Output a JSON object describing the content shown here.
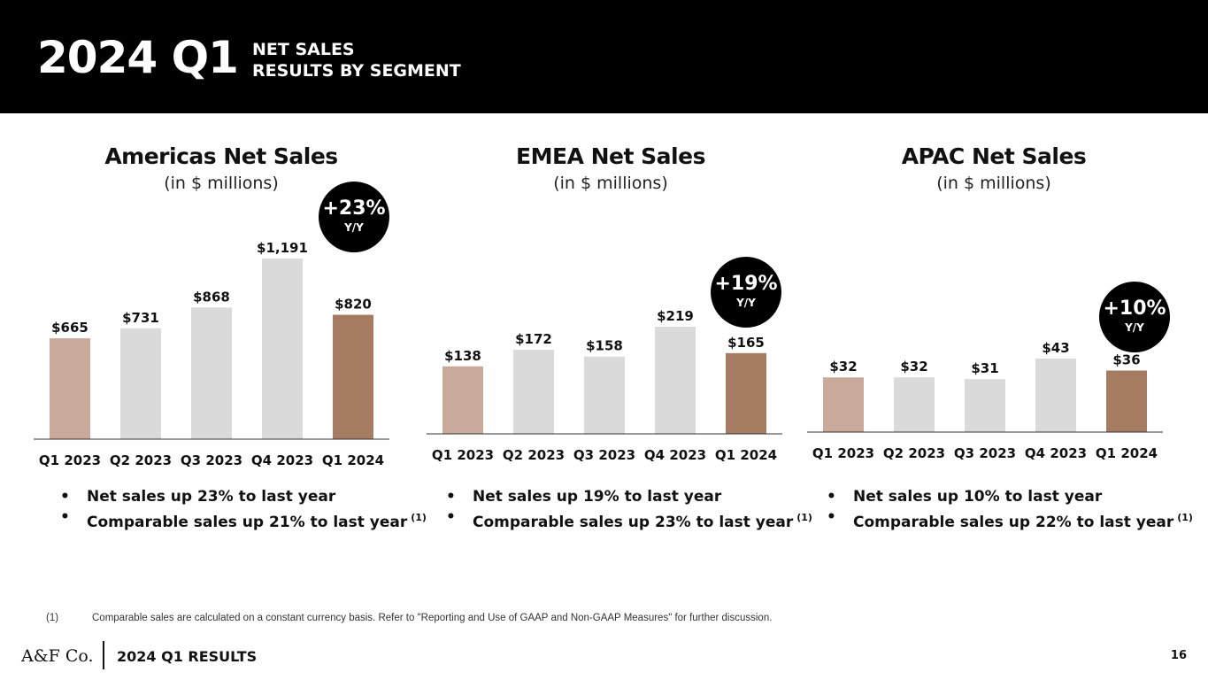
{
  "header": {
    "year_quarter": "2024 Q1",
    "title_line1": "NET SALES",
    "title_line2": "RESULTS BY SEGMENT"
  },
  "colors": {
    "bar_prior_q1": "#c8a99a",
    "bar_other": "#dadada",
    "bar_current": "#a57c62",
    "baseline": "#333333",
    "badge": "#000000"
  },
  "panels": [
    {
      "title": "Americas Net Sales",
      "subtitle": "(in $ millions)",
      "badge": {
        "pct": "+23%",
        "label": "Y/Y"
      },
      "chart_data": {
        "type": "bar",
        "title": "Americas Net Sales",
        "ylabel": "(in $ millions)",
        "categories": [
          "Q1 2023",
          "Q2 2023",
          "Q3 2023",
          "Q4 2023",
          "Q1 2024"
        ],
        "values": [
          665,
          731,
          868,
          1191,
          820
        ],
        "value_labels": [
          "$665",
          "$731",
          "$868",
          "$1,191",
          "$820"
        ],
        "ylim": [
          0,
          1191
        ]
      },
      "bullets": [
        {
          "text": "Net sales up 23% to last year",
          "note": ""
        },
        {
          "text": "Comparable sales up 21% to last year",
          "note": "(1)"
        }
      ]
    },
    {
      "title": "EMEA Net Sales",
      "subtitle": "(in $ millions)",
      "badge": {
        "pct": "+19%",
        "label": "Y/Y"
      },
      "chart_data": {
        "type": "bar",
        "title": "EMEA Net Sales",
        "ylabel": "(in $ millions)",
        "categories": [
          "Q1 2023",
          "Q2 2023",
          "Q3 2023",
          "Q4 2023",
          "Q1 2024"
        ],
        "values": [
          138,
          172,
          158,
          219,
          165
        ],
        "value_labels": [
          "$138",
          "$172",
          "$158",
          "$219",
          "$165"
        ],
        "ylim": [
          0,
          219
        ]
      },
      "bullets": [
        {
          "text": "Net sales up 19% to last year",
          "note": ""
        },
        {
          "text": "Comparable sales up 23% to last year",
          "note": "(1)"
        }
      ]
    },
    {
      "title": "APAC Net Sales",
      "subtitle": "(in $ millions)",
      "badge": {
        "pct": "+10%",
        "label": "Y/Y"
      },
      "chart_data": {
        "type": "bar",
        "title": "APAC Net Sales",
        "ylabel": "(in $ millions)",
        "categories": [
          "Q1 2023",
          "Q2 2023",
          "Q3 2023",
          "Q4 2023",
          "Q1 2024"
        ],
        "values": [
          32,
          32,
          31,
          43,
          36
        ],
        "value_labels": [
          "$32",
          "$32",
          "$31",
          "$43",
          "$36"
        ],
        "ylim": [
          0,
          43
        ]
      },
      "bullets": [
        {
          "text": "Net sales up 10% to last year",
          "note": ""
        },
        {
          "text": "Comparable sales up 22% to last year",
          "note": "(1)"
        }
      ]
    }
  ],
  "footnote": {
    "number": "(1)",
    "text": "Comparable sales are calculated on a constant currency basis. Refer to \"Reporting and Use of GAAP and Non-GAAP Measures\" for further discussion."
  },
  "footer": {
    "logo": "A&F Co.",
    "label": "2024 Q1 RESULTS",
    "page_number": "16"
  }
}
